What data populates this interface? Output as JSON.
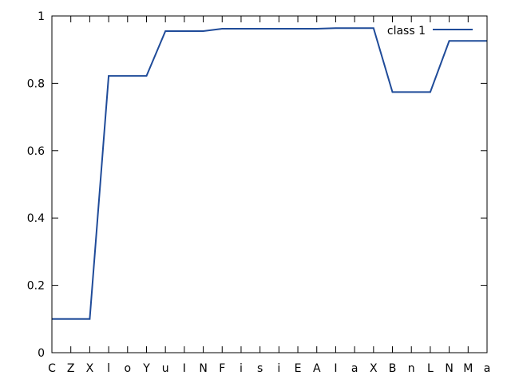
{
  "chart_data": {
    "type": "line",
    "title": "",
    "xlabel": "",
    "ylabel": "",
    "categories": [
      "C",
      "Z",
      "X",
      "l",
      "o",
      "Y",
      "u",
      "I",
      "N",
      "F",
      "i",
      "s",
      "i",
      "E",
      "A",
      "I",
      "a",
      "X",
      "B",
      "n",
      "L",
      "N",
      "M",
      "a"
    ],
    "series": [
      {
        "name": "class 1",
        "color": "#1f4b99",
        "values": [
          0.1,
          0.1,
          0.1,
          0.822,
          0.822,
          0.822,
          0.955,
          0.955,
          0.955,
          0.962,
          0.962,
          0.962,
          0.962,
          0.962,
          0.962,
          0.964,
          0.964,
          0.964,
          0.774,
          0.774,
          0.774,
          0.926,
          0.926,
          0.926
        ]
      }
    ],
    "ylim": [
      0,
      1
    ],
    "yticks": [
      "0",
      "0.2",
      "0.4",
      "0.6",
      "0.8",
      "1"
    ],
    "grid": false,
    "legend": "top-right"
  }
}
